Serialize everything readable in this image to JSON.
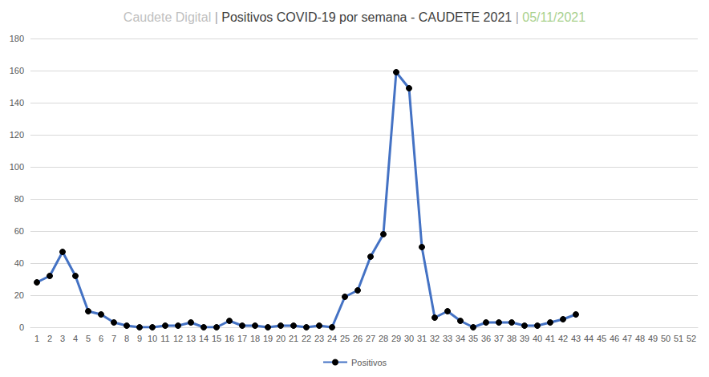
{
  "chart_data": {
    "type": "line",
    "title": "Caudete Digital | Positivos COVID-19 por semana - CAUDETE 2021 | 05/11/2021",
    "categories": [
      "1",
      "2",
      "3",
      "4",
      "5",
      "6",
      "7",
      "8",
      "9",
      "10",
      "11",
      "12",
      "13",
      "14",
      "15",
      "16",
      "17",
      "18",
      "19",
      "20",
      "21",
      "22",
      "23",
      "24",
      "25",
      "26",
      "27",
      "28",
      "29",
      "30",
      "31",
      "32",
      "33",
      "34",
      "35",
      "36",
      "37",
      "38",
      "39",
      "40",
      "41",
      "42",
      "43",
      "44",
      "45",
      "46",
      "47",
      "48",
      "49",
      "50",
      "51",
      "52"
    ],
    "series": [
      {
        "name": "Positivos",
        "color": "#4472c4",
        "marker": "circle",
        "values": [
          28,
          32,
          47,
          32,
          10,
          8,
          3,
          1,
          0,
          0,
          1,
          1,
          3,
          0,
          0,
          4,
          1,
          1,
          0,
          1,
          1,
          0,
          1,
          0,
          19,
          23,
          44,
          58,
          159,
          149,
          50,
          6,
          10,
          4,
          0,
          3,
          3,
          3,
          1,
          1,
          3,
          5,
          8,
          null,
          null,
          null,
          null,
          null,
          null,
          null,
          null,
          null
        ]
      }
    ],
    "ylim": [
      0,
      180
    ],
    "yticks": [
      0,
      20,
      40,
      60,
      80,
      100,
      120,
      140,
      160,
      180
    ],
    "grid": true,
    "legend": "bottom"
  }
}
